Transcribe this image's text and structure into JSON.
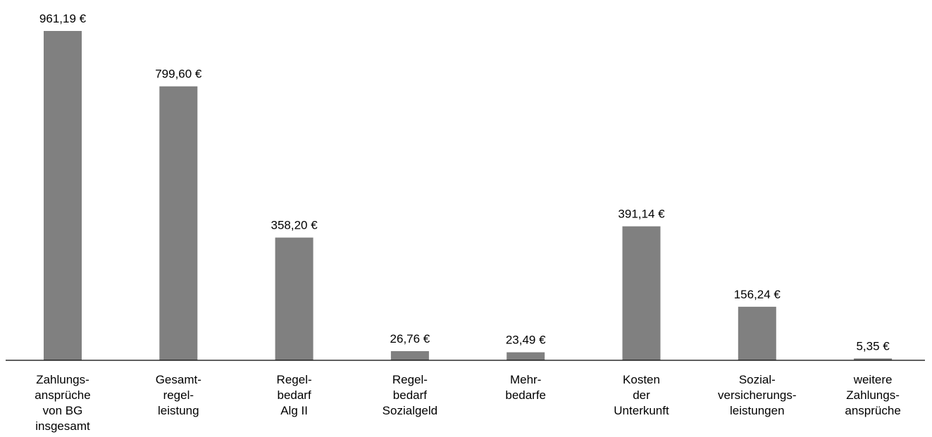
{
  "chart_data": {
    "type": "bar",
    "categories": [
      [
        "Zahlungs-",
        "ansprüche",
        "von BG",
        "insgesamt"
      ],
      [
        "Gesamt-",
        "regel-",
        "leistung"
      ],
      [
        "Regel-",
        "bedarf",
        "Alg II"
      ],
      [
        "Regel-",
        "bedarf",
        "Sozialgeld"
      ],
      [
        "Mehr-",
        "bedarfe"
      ],
      [
        "Kosten",
        "der",
        "Unterkunft"
      ],
      [
        "Sozial-",
        "versicherungs-",
        "leistungen"
      ],
      [
        "weitere",
        "Zahlungs-",
        "ansprüche"
      ]
    ],
    "values": [
      961.19,
      799.6,
      358.2,
      26.76,
      23.49,
      391.14,
      156.24,
      5.35
    ],
    "value_labels": [
      "961,19 €",
      "799,60 €",
      "358,20 €",
      "26,76 €",
      "23,49 €",
      "391,14 €",
      "156,24 €",
      "5,35 €"
    ],
    "title": "",
    "xlabel": "",
    "ylabel": "",
    "ylim": [
      0,
      961.19
    ],
    "grid": false,
    "legend": "none",
    "bar_color": "#808080",
    "axis_color": "#000000"
  }
}
